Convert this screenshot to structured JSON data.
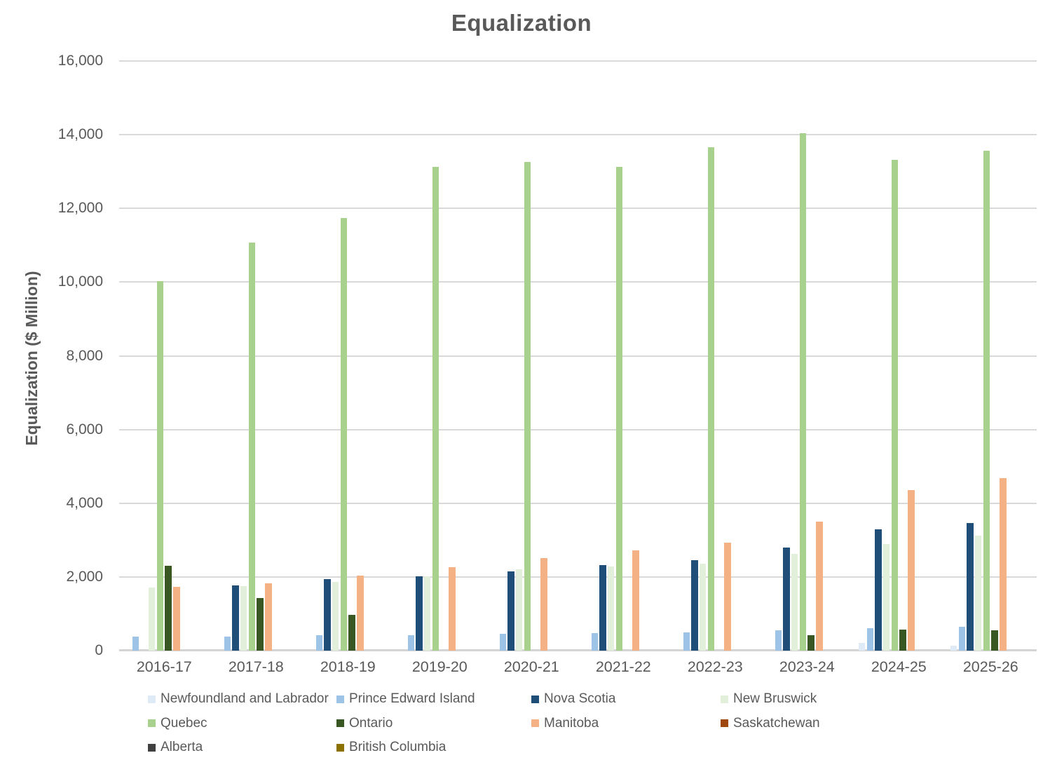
{
  "chart_data": {
    "type": "bar",
    "title": "Equalization",
    "xlabel": "",
    "ylabel": "Equalization ($ Million)",
    "ylim": [
      0,
      16000
    ],
    "ytick_interval": 2000,
    "ytick_labels": [
      "16,000",
      "14,000",
      "12,000",
      "10,000",
      "8,000",
      "6,000",
      "4,000",
      "2,000",
      "0"
    ],
    "grid": true,
    "legend_position": "bottom",
    "categories": [
      "2016-17",
      "2017-18",
      "2018-19",
      "2019-20",
      "2020-21",
      "2021-22",
      "2022-23",
      "2023-24",
      "2024-25",
      "2025-26"
    ],
    "series": [
      {
        "name": "Newfoundland and Labrador",
        "color": "#DEEBF7",
        "values": [
          0,
          0,
          0,
          0,
          0,
          0,
          0,
          0,
          218,
          127
        ]
      },
      {
        "name": "Prince Edward Island",
        "color": "#9DC3E6",
        "values": [
          380,
          390,
          419,
          419,
          454,
          484,
          503,
          561,
          610,
          649
        ]
      },
      {
        "name": "Nova Scotia",
        "color": "#1F4E79",
        "values": [
          0,
          1779,
          1933,
          2015,
          2146,
          2315,
          2458,
          2803,
          3287,
          3464
        ]
      },
      {
        "name": "New Bruswick",
        "color": "#E2EFDA",
        "values": [
          1708,
          1760,
          1874,
          2023,
          2210,
          2274,
          2360,
          2631,
          2897,
          3115
        ]
      },
      {
        "name": "Quebec",
        "color": "#A9D18E",
        "values": [
          10030,
          11081,
          11732,
          13124,
          13253,
          13119,
          13666,
          14037,
          13316,
          13570
        ]
      },
      {
        "name": "Ontario",
        "color": "#385723",
        "values": [
          2304,
          1424,
          963,
          0,
          0,
          0,
          0,
          421,
          576,
          546
        ]
      },
      {
        "name": "Manitoba",
        "color": "#F4B183",
        "values": [
          1736,
          1820,
          2037,
          2255,
          2510,
          2719,
          2933,
          3510,
          4354,
          4672
        ]
      },
      {
        "name": "Saskatchewan",
        "color": "#9E480E",
        "values": [
          0,
          0,
          0,
          0,
          0,
          0,
          0,
          0,
          0,
          0
        ]
      },
      {
        "name": "Alberta",
        "color": "#404040",
        "values": [
          0,
          0,
          0,
          0,
          0,
          0,
          0,
          0,
          0,
          0
        ]
      },
      {
        "name": "British Columbia",
        "color": "#8A7100",
        "values": [
          0,
          0,
          0,
          0,
          0,
          0,
          0,
          0,
          0,
          0
        ]
      }
    ],
    "text_color": "#595959",
    "gridline_color": "#D9D9D9"
  }
}
